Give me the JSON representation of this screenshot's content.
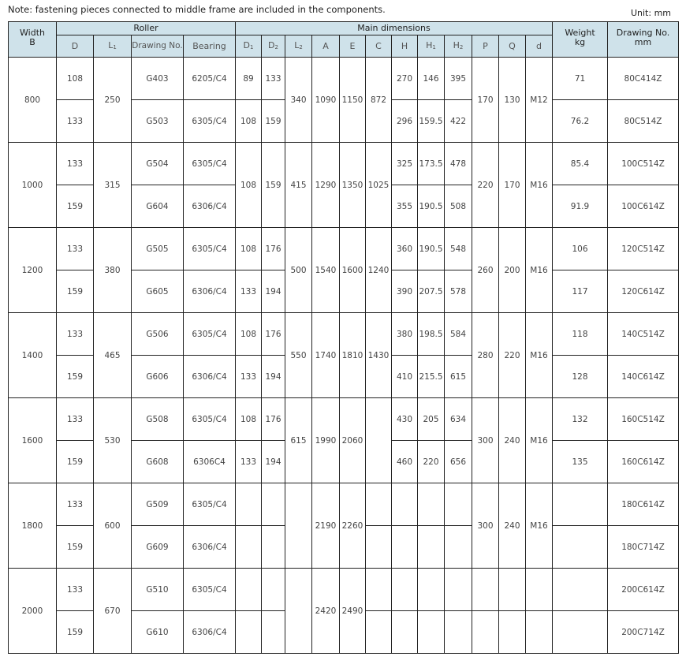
{
  "note": "Note: fastening pieces connected to middle frame are included in the components.",
  "unit": "Unit: mm",
  "header": {
    "width": [
      "Width",
      "B"
    ],
    "roller": "Roller",
    "main_dimensions": "Main dimensions",
    "weight": [
      "Weight",
      "kg"
    ],
    "drawing_no_mm": [
      "Drawing No.",
      "mm"
    ],
    "sub_columns": [
      {
        "main": "D",
        "sub": ""
      },
      {
        "main": "L",
        "sub": "1"
      },
      {
        "main": "Drawing No.",
        "sub": ""
      },
      {
        "main": "Bearing",
        "sub": ""
      },
      {
        "main": "D",
        "sub": "1"
      },
      {
        "main": "D",
        "sub": "2"
      },
      {
        "main": "L",
        "sub": "2"
      },
      {
        "main": "A",
        "sub": ""
      },
      {
        "main": "E",
        "sub": ""
      },
      {
        "main": "C",
        "sub": ""
      },
      {
        "main": "H",
        "sub": ""
      },
      {
        "main": "H",
        "sub": "1"
      },
      {
        "main": "H",
        "sub": "2"
      },
      {
        "main": "P",
        "sub": ""
      },
      {
        "main": "Q",
        "sub": ""
      },
      {
        "main": "d",
        "sub": ""
      }
    ]
  },
  "groups": [
    {
      "cells": [
        "800",
        [
          "108",
          "133"
        ],
        "250",
        [
          "G403",
          "G503"
        ],
        [
          "6205/C4",
          "6305/C4"
        ],
        [
          "89",
          "108"
        ],
        [
          "133",
          "159"
        ],
        "340",
        "1090",
        "1150",
        "872",
        [
          "270",
          "296"
        ],
        [
          "146",
          "159.5"
        ],
        [
          "395",
          "422"
        ],
        "170",
        "130",
        "M12",
        [
          "71",
          "76.2"
        ],
        [
          "80C414Z",
          "80C514Z"
        ]
      ]
    },
    {
      "cells": [
        "1000",
        [
          "133",
          "159"
        ],
        "315",
        [
          "G504",
          "G604"
        ],
        [
          "6305/C4",
          "6306/C4"
        ],
        "108",
        "159",
        "415",
        "1290",
        "1350",
        "1025",
        [
          "325",
          "355"
        ],
        [
          "173.5",
          "190.5"
        ],
        [
          "478",
          "508"
        ],
        "220",
        "170",
        "M16",
        [
          "85.4",
          "91.9"
        ],
        [
          "100C514Z",
          "100C614Z"
        ]
      ]
    },
    {
      "cells": [
        "1200",
        [
          "133",
          "159"
        ],
        "380",
        [
          "G505",
          "G605"
        ],
        [
          "6305/C4",
          "6306/C4"
        ],
        [
          "108",
          "133"
        ],
        [
          "176",
          "194"
        ],
        "500",
        "1540",
        "1600",
        "1240",
        [
          "360",
          "390"
        ],
        [
          "190.5",
          "207.5"
        ],
        [
          "548",
          "578"
        ],
        "260",
        "200",
        "M16",
        [
          "106",
          "117"
        ],
        [
          "120C514Z",
          "120C614Z"
        ]
      ]
    },
    {
      "cells": [
        "1400",
        [
          "133",
          "159"
        ],
        "465",
        [
          "G506",
          "G606"
        ],
        [
          "6305/C4",
          "6306/C4"
        ],
        [
          "108",
          "133"
        ],
        [
          "176",
          "194"
        ],
        "550",
        "1740",
        "1810",
        "1430",
        [
          "380",
          "410"
        ],
        [
          "198.5",
          "215.5"
        ],
        [
          "584",
          "615"
        ],
        "280",
        "220",
        "M16",
        [
          "118",
          "128"
        ],
        [
          "140C514Z",
          "140C614Z"
        ]
      ]
    },
    {
      "cells": [
        "1600",
        [
          "133",
          "159"
        ],
        "530",
        [
          "G508",
          "G608"
        ],
        [
          "6305/C4",
          "6306C4"
        ],
        [
          "108",
          "133"
        ],
        [
          "176",
          "194"
        ],
        "615",
        "1990",
        "2060",
        "",
        [
          "430",
          "460"
        ],
        [
          "205",
          "220"
        ],
        [
          "634",
          "656"
        ],
        "300",
        "240",
        "M16",
        [
          "132",
          "135"
        ],
        [
          "160C514Z",
          "160C614Z"
        ]
      ]
    },
    {
      "cells": [
        "1800",
        [
          "133",
          "159"
        ],
        "600",
        [
          "G509",
          "G609"
        ],
        [
          "6305/C4",
          "6306/C4"
        ],
        [
          "",
          ""
        ],
        [
          "",
          ""
        ],
        "",
        "2190",
        "2260",
        [
          "",
          ""
        ],
        [
          "",
          ""
        ],
        [
          "",
          ""
        ],
        [
          "",
          ""
        ],
        "300",
        "240",
        "M16",
        [
          "",
          ""
        ],
        [
          "180C614Z",
          "180C714Z"
        ]
      ]
    },
    {
      "cells": [
        "2000",
        [
          "133",
          "159"
        ],
        "670",
        [
          "G510",
          "G610"
        ],
        [
          "6305/C4",
          "6306/C4"
        ],
        [
          "",
          ""
        ],
        [
          "",
          ""
        ],
        "",
        "2420",
        "2490",
        [
          "",
          ""
        ],
        [
          "",
          ""
        ],
        [
          "",
          ""
        ],
        [
          "",
          ""
        ],
        [
          "",
          ""
        ],
        [
          "",
          ""
        ],
        [
          "",
          ""
        ],
        [
          "",
          ""
        ],
        [
          "200C614Z",
          "200C714Z"
        ]
      ]
    }
  ]
}
